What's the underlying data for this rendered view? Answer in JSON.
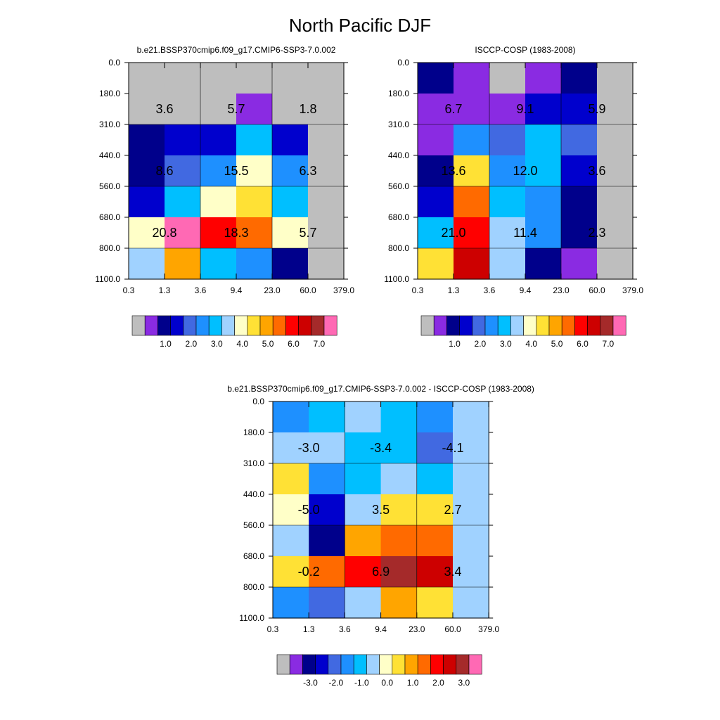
{
  "title": "North Pacific DJF",
  "palette": {
    "main": [
      "#bebebe",
      "#8a2be2",
      "#00008b",
      "#0000cd",
      "#4169e1",
      "#1e90ff",
      "#00bfff",
      "#a0d2ff",
      "#ffffc8",
      "#ffe135",
      "#ffa500",
      "#ff6a00",
      "#ff0000",
      "#cd0000",
      "#a52a2a",
      "#ff69b4"
    ],
    "diff": [
      "#bebebe",
      "#8a2be2",
      "#00008b",
      "#0000cd",
      "#4169e1",
      "#1e90ff",
      "#00bfff",
      "#a0d2ff",
      "#ffffc8",
      "#ffe135",
      "#ffa500",
      "#ff6a00",
      "#ff0000",
      "#cd0000",
      "#a52a2a",
      "#ff69b4"
    ]
  },
  "chart_data": [
    {
      "type": "heatmap",
      "name": "model",
      "title": "b.e21.BSSP370cmip6.f09_g17.CMIP6-SSP3-7.0.002",
      "xlabels": [
        "0.3",
        "1.3",
        "3.6",
        "9.4",
        "23.0",
        "60.0",
        "379.0"
      ],
      "ylabels": [
        "0.0",
        "180.0",
        "310.0",
        "440.0",
        "560.0",
        "680.0",
        "800.0",
        "1100.0"
      ],
      "grid": true,
      "cells": [
        [
          0,
          0,
          0,
          0,
          0,
          0
        ],
        [
          0,
          0,
          0,
          1,
          0,
          0
        ],
        [
          2,
          3,
          3,
          6,
          3,
          0
        ],
        [
          2,
          4,
          5,
          8,
          5,
          0
        ],
        [
          3,
          6,
          8,
          9,
          6,
          0
        ],
        [
          8,
          15,
          12,
          11,
          8,
          0
        ],
        [
          7,
          10,
          6,
          5,
          2,
          0
        ]
      ],
      "block_values": [
        "3.6",
        "5.7",
        "1.8",
        "8.6",
        "15.5",
        "6.3",
        "20.8",
        "18.3",
        "5.7"
      ],
      "colorbar": {
        "palette": "main",
        "labels": [
          "1.0",
          "2.0",
          "3.0",
          "4.0",
          "5.0",
          "6.0",
          "7.0"
        ]
      }
    },
    {
      "type": "heatmap",
      "name": "obs",
      "title": "ISCCP-COSP (1983-2008)",
      "xlabels": [
        "0.3",
        "1.3",
        "3.6",
        "9.4",
        "23.0",
        "60.0",
        "379.0"
      ],
      "ylabels": [
        "0.0",
        "180.0",
        "310.0",
        "440.0",
        "560.0",
        "680.0",
        "800.0",
        "1100.0"
      ],
      "grid": true,
      "cells": [
        [
          2,
          1,
          0,
          1,
          2,
          0
        ],
        [
          1,
          1,
          1,
          3,
          3,
          0
        ],
        [
          1,
          5,
          4,
          6,
          4,
          0
        ],
        [
          2,
          9,
          5,
          6,
          3,
          0
        ],
        [
          3,
          11,
          6,
          5,
          2,
          0
        ],
        [
          6,
          12,
          7,
          5,
          2,
          0
        ],
        [
          9,
          13,
          7,
          2,
          1,
          0
        ]
      ],
      "block_values": [
        "6.7",
        "9.1",
        "5.9",
        "13.6",
        "12.0",
        "3.6",
        "21.0",
        "11.4",
        "2.3"
      ],
      "colorbar": {
        "palette": "main",
        "labels": [
          "1.0",
          "2.0",
          "3.0",
          "4.0",
          "5.0",
          "6.0",
          "7.0"
        ]
      }
    },
    {
      "type": "heatmap",
      "name": "diff",
      "title": "b.e21.BSSP370cmip6.f09_g17.CMIP6-SSP3-7.0.002 - ISCCP-COSP (1983-2008)",
      "xlabels": [
        "0.3",
        "1.3",
        "3.6",
        "9.4",
        "23.0",
        "60.0",
        "379.0"
      ],
      "ylabels": [
        "0.0",
        "180.0",
        "310.0",
        "440.0",
        "560.0",
        "680.0",
        "800.0",
        "1100.0"
      ],
      "grid": true,
      "cells": [
        [
          5,
          6,
          7,
          6,
          5,
          7
        ],
        [
          7,
          7,
          6,
          6,
          4,
          7
        ],
        [
          9,
          5,
          6,
          7,
          6,
          7
        ],
        [
          8,
          3,
          7,
          9,
          9,
          7
        ],
        [
          7,
          2,
          10,
          11,
          11,
          7
        ],
        [
          9,
          11,
          12,
          14,
          13,
          7
        ],
        [
          5,
          4,
          7,
          10,
          9,
          7
        ]
      ],
      "block_values": [
        "-3.0",
        "-3.4",
        "-4.1",
        "-5.0",
        "3.5",
        "2.7",
        "-0.2",
        "6.9",
        "3.4"
      ],
      "colorbar": {
        "palette": "diff",
        "labels": [
          "-3.0",
          "-2.0",
          "-1.0",
          "0.0",
          "1.0",
          "2.0",
          "3.0"
        ]
      }
    }
  ]
}
